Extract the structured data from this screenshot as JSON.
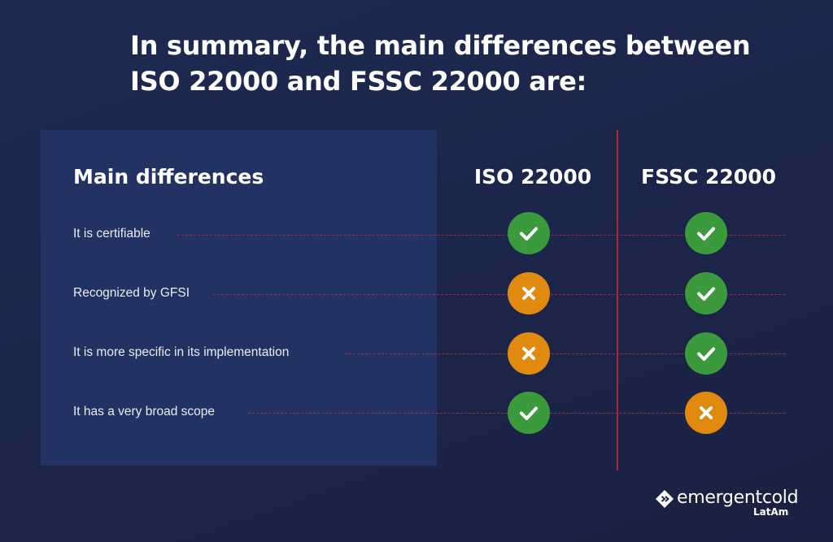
{
  "title_line1": "In summary, the main differences between",
  "title_line2": "ISO 22000 and FSSC 22000 are:",
  "table": {
    "heading": "Main differences",
    "columns": [
      "ISO 22000",
      "FSSC 22000"
    ],
    "rows": [
      {
        "label": "It is certifiable",
        "iso": "check-icon",
        "fssc": "check-icon"
      },
      {
        "label": "Recognized by GFSI",
        "iso": "cross-icon",
        "fssc": "check-icon"
      },
      {
        "label": "It is more specific in its implementation",
        "iso": "cross-icon",
        "fssc": "check-icon"
      },
      {
        "label": "It has a very broad scope",
        "iso": "check-icon",
        "fssc": "cross-icon"
      }
    ]
  },
  "logo": {
    "name": "emergentcold",
    "region": "LatAm"
  },
  "colors": {
    "background": "#1d2749",
    "panel": "#223263",
    "divider": "#b0243a",
    "check": "#3b9a3c",
    "cross": "#e08a10"
  }
}
